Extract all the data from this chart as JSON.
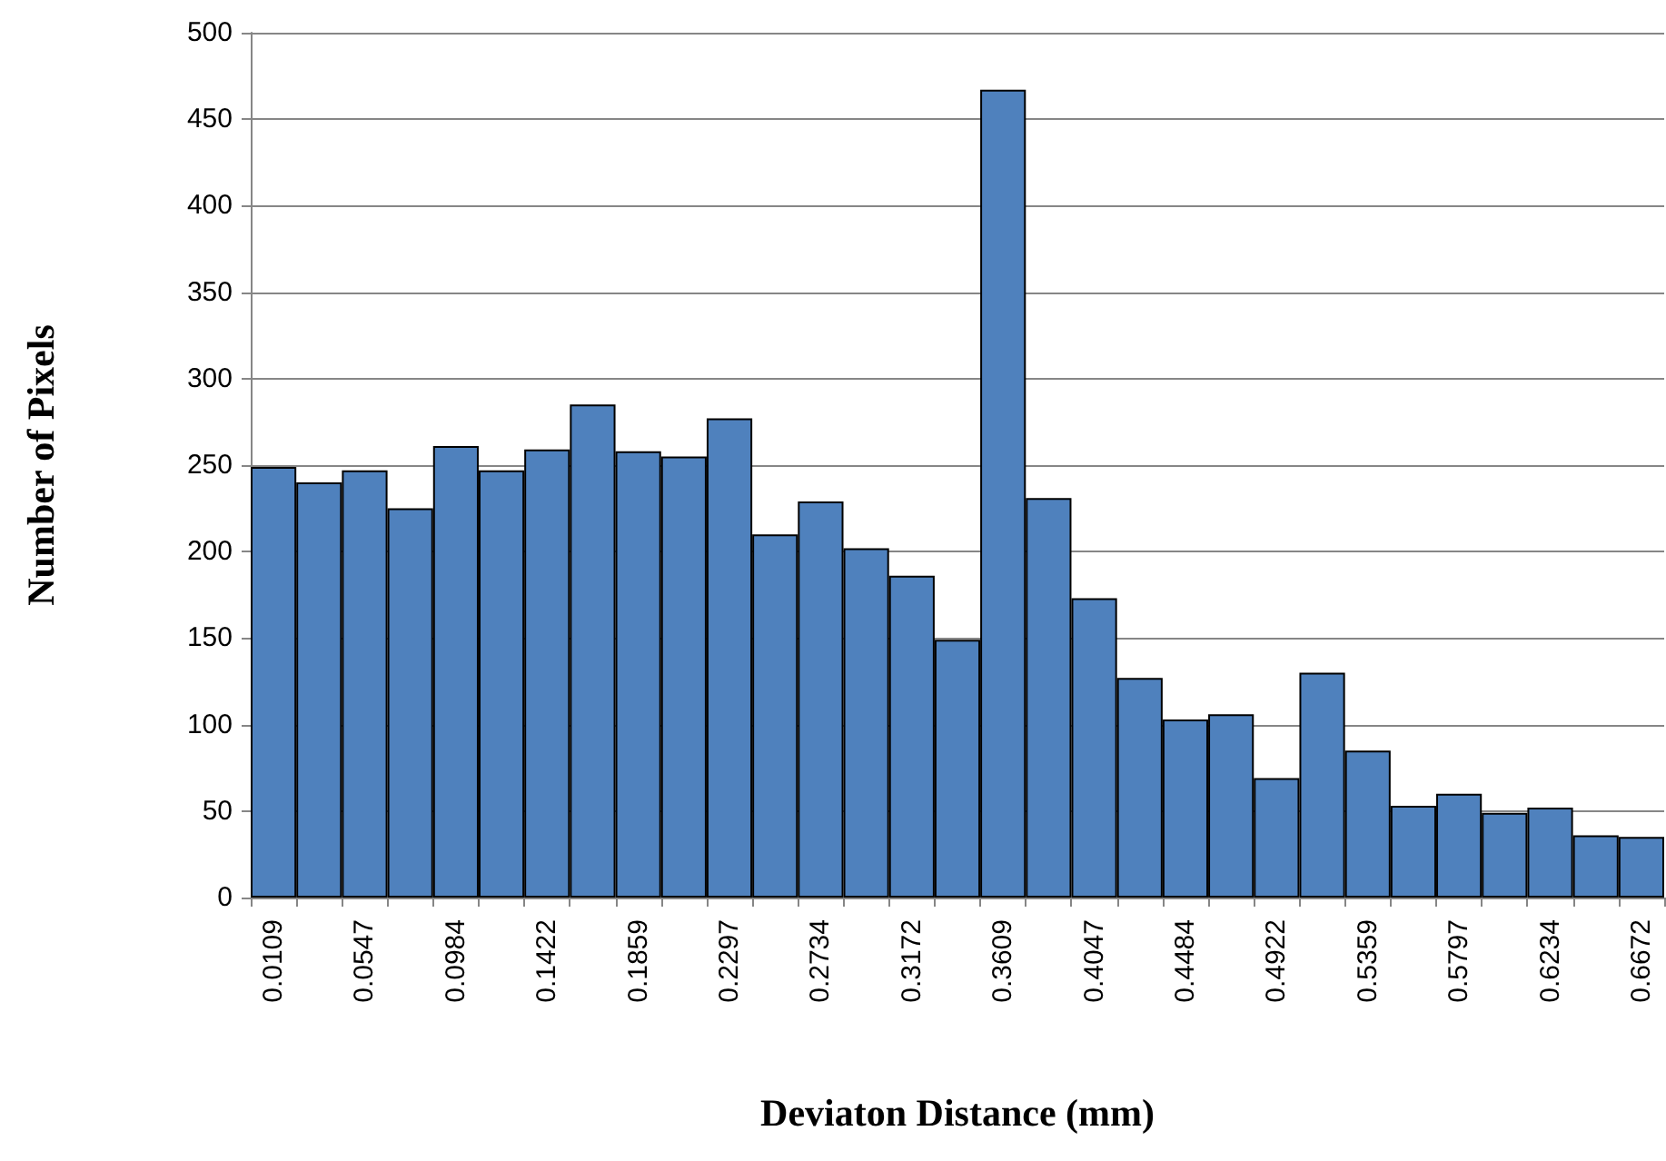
{
  "chart_data": {
    "type": "bar",
    "xlabel": "Deviaton Distance (mm)",
    "ylabel": "Number of Pixels",
    "categories": [
      "0.0109",
      null,
      "0.0547",
      null,
      "0.0984",
      null,
      "0.1422",
      null,
      "0.1859",
      null,
      "0.2297",
      null,
      "0.2734",
      null,
      "0.3172",
      null,
      "0.3609",
      null,
      "0.4047",
      null,
      "0.4484",
      null,
      "0.4922",
      null,
      "0.5359",
      null,
      "0.5797",
      null,
      "0.6234",
      null,
      "0.6672"
    ],
    "values": [
      249,
      240,
      247,
      225,
      261,
      247,
      259,
      285,
      258,
      255,
      277,
      210,
      229,
      202,
      186,
      149,
      467,
      231,
      173,
      127,
      103,
      106,
      69,
      130,
      85,
      53,
      60,
      49,
      52,
      36,
      35
    ],
    "color": "#4f81bd",
    "ylim": [
      0,
      500
    ],
    "yticks": [
      0,
      50,
      100,
      150,
      200,
      250,
      300,
      350,
      400,
      450,
      500
    ],
    "grid": "y"
  }
}
